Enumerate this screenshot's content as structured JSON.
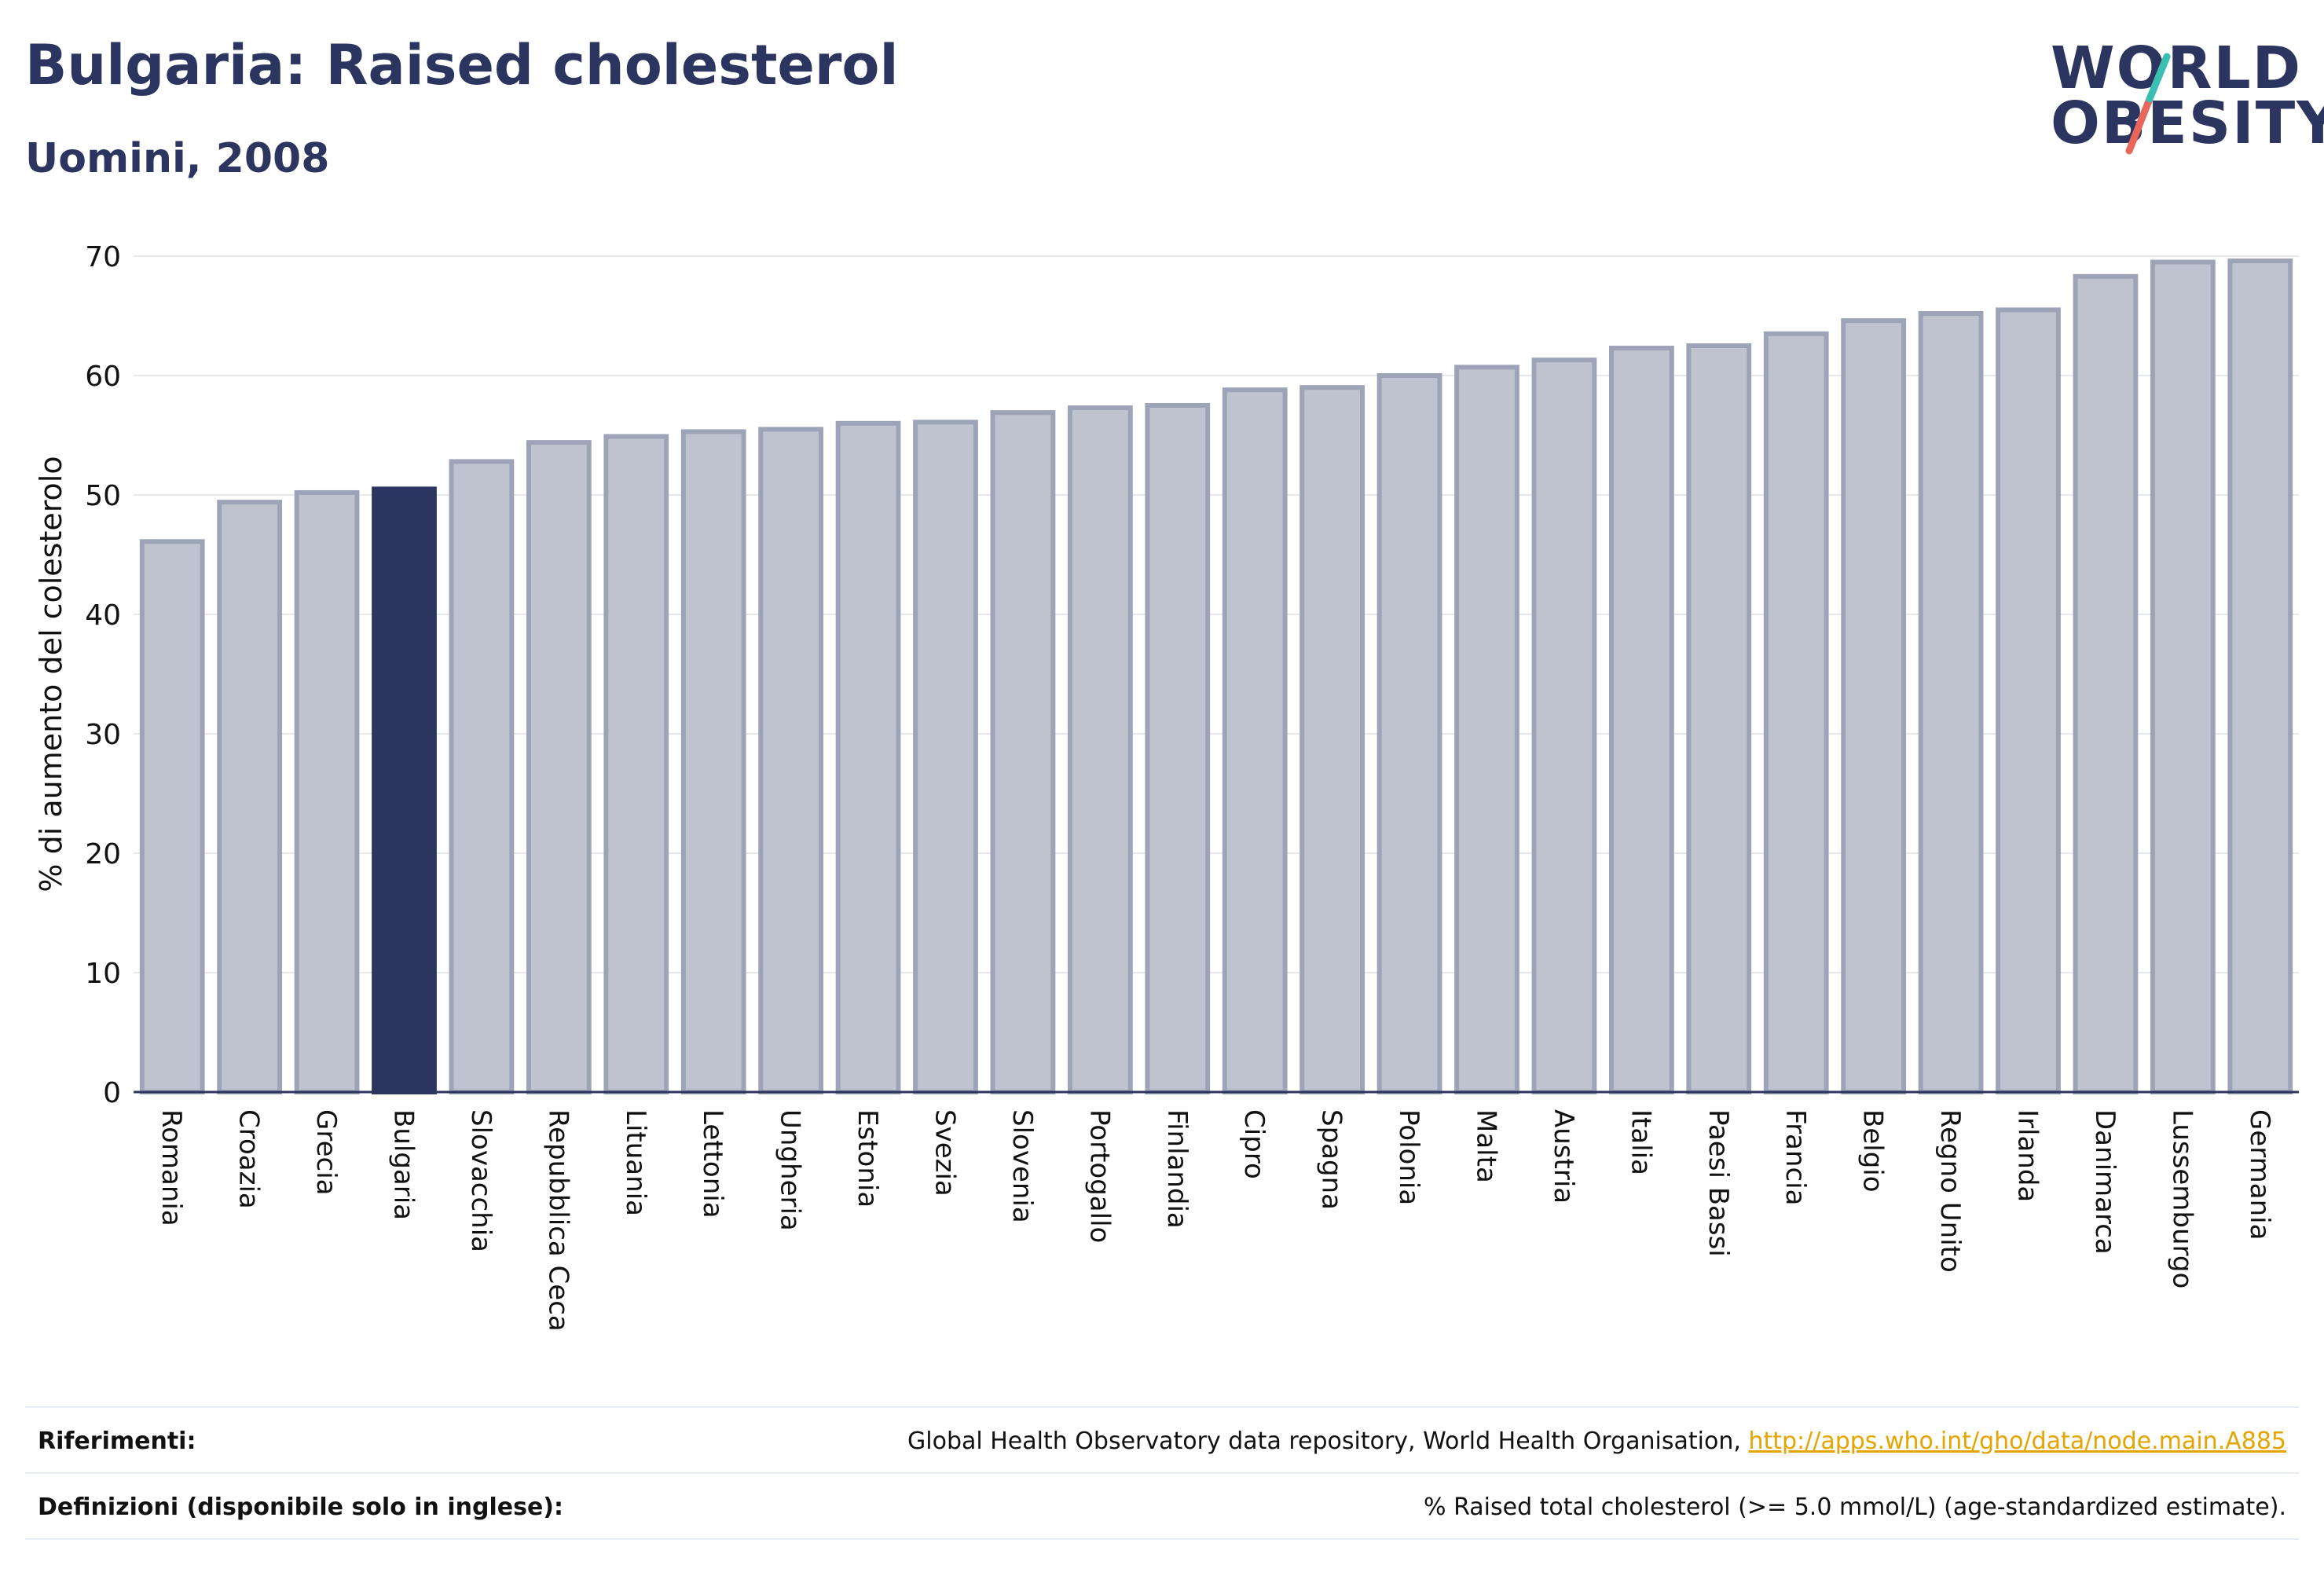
{
  "header": {
    "title": "Bulgaria: Raised cholesterol",
    "subtitle": "Uomini, 2008"
  },
  "logo": {
    "line1": "WORLD",
    "line2": "OBESITY"
  },
  "colors": {
    "highlight": "#2b3560",
    "bar_fill": "#bfc3d0",
    "bar_stroke": "#9ea4b8",
    "grid": "#e6e8ee",
    "logo_teal": "#3bbfb3",
    "logo_coral": "#e8665a",
    "link": "#e6a400"
  },
  "chart_data": {
    "type": "bar",
    "highlight": "Bulgaria",
    "ylabel": "% di aumento del colesterolo",
    "ylim": [
      0,
      70
    ],
    "yticks": [
      0,
      10,
      20,
      30,
      40,
      50,
      60,
      70
    ],
    "categories": [
      "Romania",
      "Croazia",
      "Grecia",
      "Bulgaria",
      "Slovacchia",
      "Repubblica Ceca",
      "Lituania",
      "Lettonia",
      "Ungheria",
      "Estonia",
      "Svezia",
      "Slovenia",
      "Portogallo",
      "Finlandia",
      "Cipro",
      "Spagna",
      "Polonia",
      "Malta",
      "Austria",
      "Italia",
      "Paesi Bassi",
      "Francia",
      "Belgio",
      "Regno Unito",
      "Irlanda",
      "Danimarca",
      "Lussemburgo",
      "Germania"
    ],
    "values": [
      46.1,
      49.4,
      50.2,
      50.5,
      52.8,
      54.4,
      54.9,
      55.3,
      55.5,
      56.0,
      56.1,
      56.9,
      57.3,
      57.5,
      58.8,
      59.0,
      60.0,
      60.7,
      61.3,
      62.3,
      62.5,
      63.5,
      64.6,
      65.2,
      65.5,
      68.3,
      69.5,
      69.6
    ]
  },
  "footer": {
    "references_label": "Riferimenti:",
    "references_text": "Global Health Observatory data repository, World Health Organisation, ",
    "references_link": "http://apps.who.int/gho/data/node.main.A885",
    "definitions_label": "Definizioni (disponibile solo in inglese):",
    "definitions_text": "% Raised total cholesterol (>= 5.0 mmol/L) (age-standardized estimate)."
  }
}
